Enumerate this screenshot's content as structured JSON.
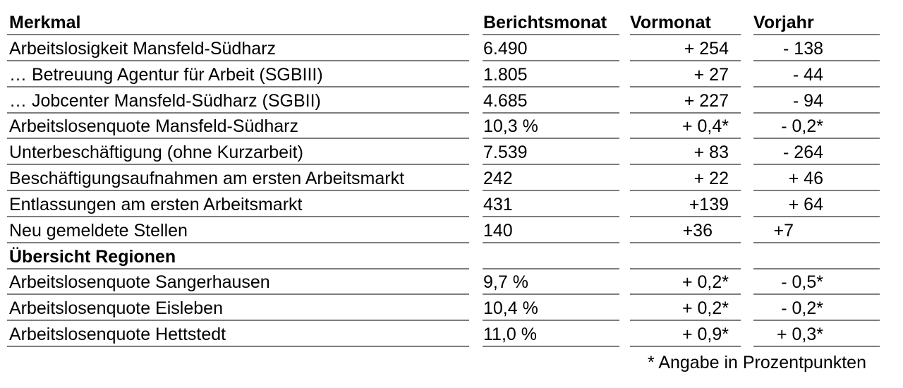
{
  "table": {
    "columns": {
      "merkmal": "Merkmal",
      "berichtsmonat": "Berichtsmonat",
      "vormonat": "Vormonat",
      "vorjahr": "Vorjahr"
    },
    "rows": [
      {
        "merkmal": "Arbeitslosigkeit Mansfeld-Südharz",
        "berichtsmonat": "6.490",
        "vormonat": "+ 254",
        "vorjahr": "- 138"
      },
      {
        "merkmal": "… Betreuung Agentur für Arbeit (SGBIII)",
        "berichtsmonat": "1.805",
        "vormonat": "+ 27",
        "vorjahr": "- 44"
      },
      {
        "merkmal": "… Jobcenter Mansfeld-Südharz (SGBII)",
        "berichtsmonat": "4.685",
        "vormonat": "+ 227",
        "vorjahr": "- 94"
      },
      {
        "merkmal": "Arbeitslosenquote Mansfeld-Südharz",
        "berichtsmonat": "10,3 %",
        "vormonat": "+ 0,4*",
        "vorjahr": "- 0,2*"
      },
      {
        "merkmal": "Unterbeschäftigung (ohne Kurzarbeit)",
        "berichtsmonat": "7.539",
        "vormonat": "+ 83",
        "vorjahr": "- 264"
      },
      {
        "merkmal": "Beschäftigungsaufnahmen am ersten Arbeitsmarkt",
        "berichtsmonat": "242",
        "vormonat": "+ 22",
        "vorjahr": "+ 46"
      },
      {
        "merkmal": "Entlassungen am ersten Arbeitsmarkt",
        "berichtsmonat": "431",
        "vormonat": "+139",
        "vorjahr": "+ 64"
      },
      {
        "merkmal": "Neu gemeldete Stellen",
        "berichtsmonat": "140",
        "vormonat": "+36",
        "vorjahr": "+7",
        "vormonat_shift": true,
        "vorjahr_shift": true
      },
      {
        "merkmal": "Übersicht Regionen",
        "berichtsmonat": "",
        "vormonat": "",
        "vorjahr": "",
        "section": true
      },
      {
        "merkmal": "Arbeitslosenquote Sangerhausen",
        "berichtsmonat": "9,7 %",
        "vormonat": "+ 0,2*",
        "vorjahr": "- 0,5*"
      },
      {
        "merkmal": "Arbeitslosenquote Eisleben",
        "berichtsmonat": "10,4 %",
        "vormonat": "+ 0,2*",
        "vorjahr": "- 0,2*"
      },
      {
        "merkmal": "Arbeitslosenquote Hettstedt",
        "berichtsmonat": "11,0 %",
        "vormonat": "+ 0,9*",
        "vorjahr": "+ 0,3*"
      }
    ],
    "footnote": "* Angabe in Prozentpunkten"
  },
  "colors": {
    "text": "#000000",
    "rule": "#7d7d7d",
    "background": "#ffffff"
  }
}
